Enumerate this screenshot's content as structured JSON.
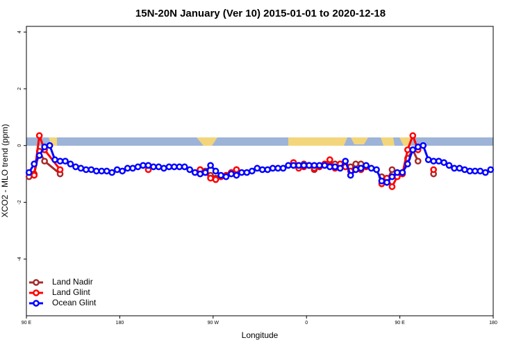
{
  "chart_data": {
    "type": "line",
    "title": "15N-20N January (Ver 10)   2015-01-01 to 2020-12-18",
    "xlabel": "Longitude",
    "ylabel": "XCO2 - MLO trend (ppm)",
    "xlim": [
      90,
      540
    ],
    "ylim": [
      -6,
      4.2
    ],
    "xticks": [
      {
        "value": 90,
        "label": "90 E"
      },
      180,
      {
        "value": 270,
        "label": "90 W"
      },
      {
        "value": 360,
        "label": "0"
      },
      {
        "value": 450,
        "label": "90 E"
      },
      {
        "value": 540,
        "label": "180"
      }
    ],
    "yticks": [
      4,
      2,
      0,
      -2,
      -4
    ],
    "legend": "bottom-left",
    "series": [
      {
        "name": "Land Nadir",
        "color": "#a52a2a",
        "x": [
          92.5,
          97.5,
          102.5,
          107.5,
          122.5,
          127.5,
          257.5,
          262.5,
          267.5,
          272.5,
          277.5,
          282.5,
          287.5,
          292.5,
          297.5,
          352.5,
          357.5,
          362.5,
          367.5,
          372.5,
          377.5,
          382.5,
          387.5,
          392.5,
          397.5,
          402.5,
          407.5,
          412.5,
          417.5,
          432.5,
          437.5,
          442.5,
          447.5,
          452.5,
          457.5,
          462.5,
          467.5,
          472.5,
          482.5
        ],
        "values": [
          -1.1,
          -1.0,
          -0.2,
          -0.55,
          -1.0,
          null,
          -0.85,
          -0.9,
          -1.05,
          -1.15,
          -1.1,
          -1.05,
          -0.95,
          -0.85,
          null,
          -0.7,
          -0.65,
          -0.7,
          -0.85,
          -0.75,
          -0.7,
          -0.7,
          -0.65,
          -0.65,
          -0.7,
          -0.75,
          -0.65,
          -0.65,
          null,
          -1.1,
          -1.25,
          -0.85,
          -1.0,
          -0.95,
          -0.45,
          -0.15,
          -0.55,
          null,
          -1.0
        ]
      },
      {
        "name": "Land Glint",
        "color": "#ff0000",
        "x": [
          97.5,
          102.5,
          107.5,
          122.5,
          127.5,
          207.5,
          212.5,
          257.5,
          262.5,
          267.5,
          272.5,
          277.5,
          282.5,
          287.5,
          292.5,
          297.5,
          347.5,
          352.5,
          357.5,
          362.5,
          367.5,
          372.5,
          377.5,
          382.5,
          387.5,
          392.5,
          397.5,
          402.5,
          407.5,
          412.5,
          417.5,
          422.5,
          432.5,
          437.5,
          442.5,
          447.5,
          452.5,
          457.5,
          462.5,
          467.5,
          477.5,
          482.5
        ],
        "values": [
          -1.05,
          0.35,
          -0.15,
          -0.85,
          null,
          -0.85,
          null,
          -0.85,
          -0.95,
          -1.15,
          -1.2,
          -1.1,
          -1.05,
          -0.95,
          -0.85,
          null,
          -0.6,
          -0.8,
          -0.75,
          -0.7,
          -0.8,
          -0.75,
          -0.65,
          -0.5,
          -0.8,
          -0.65,
          -0.75,
          -0.9,
          -0.85,
          -0.85,
          -0.75,
          null,
          -1.35,
          -1.15,
          -1.45,
          -1.1,
          -1.0,
          -0.15,
          0.35,
          -0.15,
          null,
          -0.85
        ]
      },
      {
        "name": "Ocean Glint",
        "color": "#0000ff",
        "x": [
          92.5,
          97.5,
          102.5,
          107.5,
          112.5,
          117.5,
          122.5,
          127.5,
          132.5,
          137.5,
          142.5,
          147.5,
          152.5,
          157.5,
          162.5,
          167.5,
          172.5,
          177.5,
          182.5,
          187.5,
          192.5,
          197.5,
          202.5,
          207.5,
          212.5,
          217.5,
          222.5,
          227.5,
          232.5,
          237.5,
          242.5,
          247.5,
          252.5,
          257.5,
          262.5,
          267.5,
          272.5,
          277.5,
          282.5,
          287.5,
          292.5,
          297.5,
          302.5,
          307.5,
          312.5,
          317.5,
          322.5,
          327.5,
          332.5,
          337.5,
          342.5,
          347.5,
          352.5,
          357.5,
          362.5,
          367.5,
          372.5,
          377.5,
          382.5,
          387.5,
          392.5,
          397.5,
          402.5,
          407.5,
          412.5,
          417.5,
          422.5,
          427.5,
          432.5,
          437.5,
          442.5,
          447.5,
          452.5,
          457.5,
          462.5,
          467.5,
          472.5,
          477.5,
          482.5,
          487.5,
          492.5,
          497.5,
          502.5,
          507.5,
          512.5,
          517.5,
          522.5,
          527.5,
          532.5,
          537.5
        ],
        "values": [
          -0.95,
          -0.65,
          -0.35,
          -0.05,
          0.0,
          -0.5,
          -0.55,
          -0.55,
          -0.65,
          -0.75,
          -0.8,
          -0.85,
          -0.85,
          -0.9,
          -0.9,
          -0.9,
          -0.95,
          -0.85,
          -0.9,
          -0.8,
          -0.8,
          -0.75,
          -0.7,
          -0.7,
          -0.75,
          -0.75,
          -0.8,
          -0.75,
          -0.75,
          -0.75,
          -0.75,
          -0.85,
          -0.95,
          -1.0,
          -0.95,
          -0.7,
          -0.9,
          -1.05,
          -1.1,
          -1.0,
          -1.05,
          -0.95,
          -0.95,
          -0.9,
          -0.8,
          -0.85,
          -0.85,
          -0.8,
          -0.8,
          -0.8,
          -0.7,
          -0.7,
          -0.7,
          -0.7,
          -0.7,
          -0.7,
          -0.7,
          -0.7,
          -0.75,
          -0.75,
          -0.8,
          -0.55,
          -1.05,
          -0.85,
          -0.8,
          -0.7,
          -0.8,
          -0.85,
          -1.25,
          -1.3,
          -1.1,
          -0.95,
          -0.95,
          -0.65,
          -0.15,
          -0.05,
          0.0,
          -0.5,
          -0.55,
          -0.55,
          -0.6,
          -0.7,
          -0.8,
          -0.8,
          -0.85,
          -0.9,
          -0.9,
          -0.9,
          -0.95,
          -0.85
        ]
      }
    ]
  }
}
